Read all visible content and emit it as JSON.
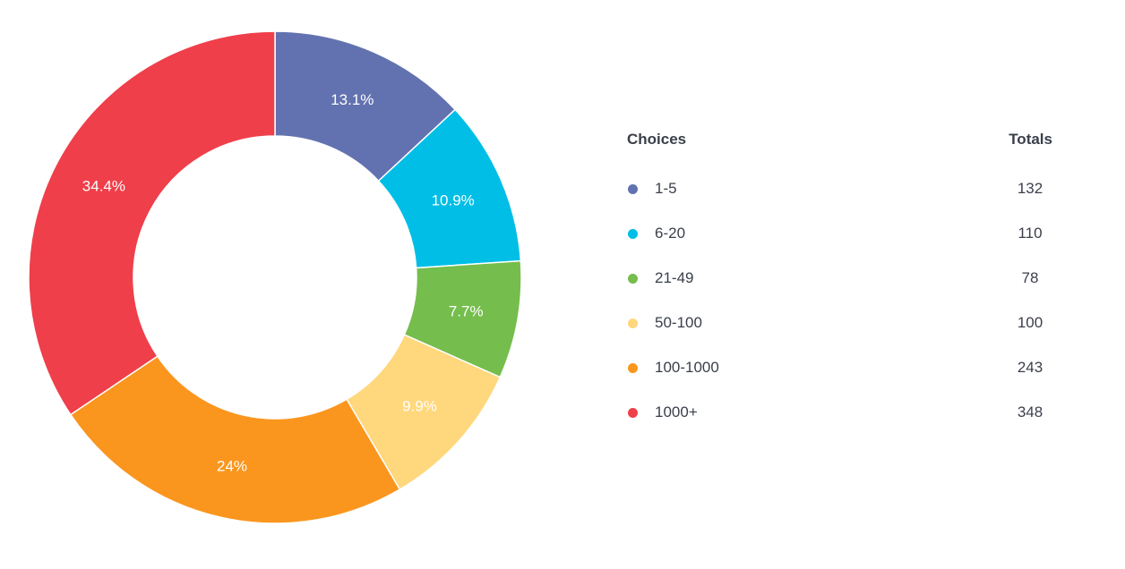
{
  "chart_data": {
    "type": "pie",
    "donut": true,
    "categories": [
      "1-5",
      "6-20",
      "21-49",
      "50-100",
      "100-1000",
      "1000+"
    ],
    "values": [
      132,
      110,
      78,
      100,
      243,
      348
    ],
    "percent_labels": [
      "13.1%",
      "10.9%",
      "7.7%",
      "9.9%",
      "24%",
      "34.4%"
    ],
    "colors": [
      "#6272b0",
      "#00bee6",
      "#75bd4c",
      "#ffd77d",
      "#fa961e",
      "#ef3f4a"
    ],
    "legend_placement": "right"
  },
  "legend": {
    "choices_header": "Choices",
    "totals_header": "Totals",
    "items": [
      {
        "label": "1-5",
        "total": "132",
        "color": "#6272b0"
      },
      {
        "label": "6-20",
        "total": "110",
        "color": "#00bee6"
      },
      {
        "label": "21-49",
        "total": "78",
        "color": "#75bd4c"
      },
      {
        "label": "50-100",
        "total": "100",
        "color": "#ffd77d"
      },
      {
        "label": "100-1000",
        "total": "243",
        "color": "#fa961e"
      },
      {
        "label": "1000+",
        "total": "348",
        "color": "#ef3f4a"
      }
    ]
  }
}
